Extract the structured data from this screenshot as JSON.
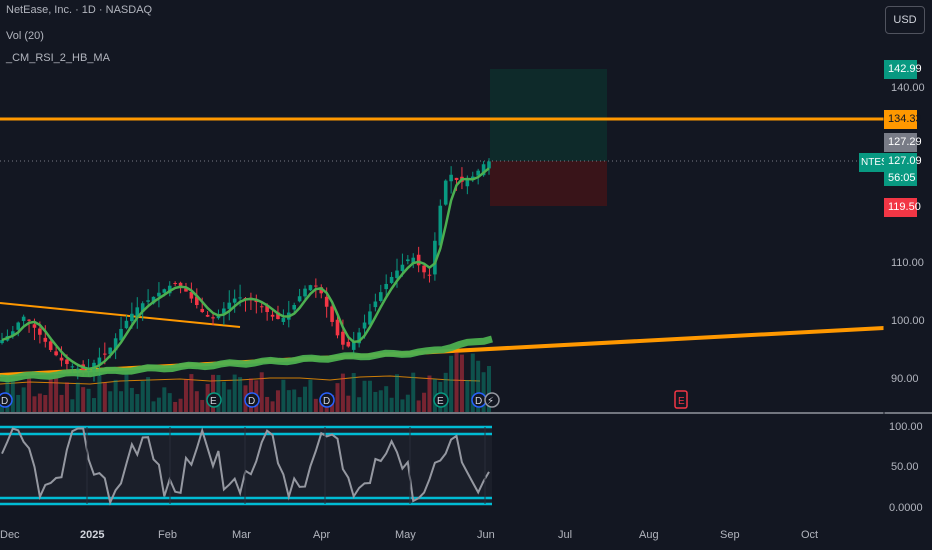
{
  "header": {
    "symbol_line": "NetEase, Inc. · 1D · NASDAQ",
    "volume_line": "Vol (20)",
    "indicator_line": "_CM_RSI_2_HB_MA"
  },
  "currency_button": "USD",
  "price_axis": {
    "ticks": [
      "140.00",
      "110.00",
      "100.00",
      "90.00"
    ],
    "ticks_values": [
      140,
      110,
      100,
      90
    ]
  },
  "price_tags": {
    "target": {
      "label": "142.99",
      "color": "#089981"
    },
    "resistance": {
      "label": "134.33",
      "color": "#ff9800"
    },
    "high": {
      "label": "127.29",
      "color": "#787b86"
    },
    "symbol": "NTES",
    "last": {
      "label": "127.09",
      "color": "#089981"
    },
    "countdown": "56:05",
    "stop": {
      "label": "119.50",
      "color": "#f23645"
    }
  },
  "oscillator_axis": {
    "ticks": [
      "100.00",
      "50.00",
      "0.0000"
    ]
  },
  "time_axis": {
    "labels": [
      "Dec",
      "2025",
      "Feb",
      "Mar",
      "Apr",
      "May",
      "Jun",
      "Jul",
      "Aug",
      "Sep",
      "Oct"
    ]
  },
  "event_markers": {
    "dividend_letter": "D",
    "earnings_letter": "E",
    "split_symbol": "⚡"
  },
  "colors": {
    "background": "#131722",
    "up": "#089981",
    "down": "#f23645",
    "ma_green": "#4caf50",
    "orange": "#ff9800",
    "osc_line": "#9598a1",
    "osc_band": "#00bcd4"
  },
  "chart_data": {
    "type": "candlestick",
    "title": "NetEase, Inc. · 1D · NASDAQ",
    "ylim": [
      86,
      147
    ],
    "price_series_close": [
      96.5,
      97.2,
      98.0,
      99.5,
      100.5,
      99.8,
      98.6,
      97.4,
      96.2,
      94.8,
      93.9,
      93.0,
      92.4,
      92.0,
      91.6,
      91.3,
      91.4,
      92.6,
      93.5,
      94.0,
      95.2,
      96.8,
      98.4,
      99.8,
      101.0,
      102.1,
      102.8,
      103.3,
      103.9,
      104.6,
      105.2,
      105.8,
      106.1,
      105.4,
      104.8,
      103.6,
      102.5,
      101.3,
      100.5,
      100.2,
      100.8,
      101.9,
      102.9,
      103.6,
      103.8,
      103.5,
      103.3,
      103.0,
      102.2,
      101.3,
      100.5,
      100.1,
      100.3,
      101.2,
      102.5,
      104.0,
      105.3,
      105.9,
      105.7,
      104.5,
      102.2,
      99.6,
      97.3,
      95.7,
      95.4,
      96.3,
      97.8,
      99.5,
      101.4,
      103.1,
      104.7,
      106.1,
      107.3,
      108.4,
      109.4,
      110.3,
      110.6,
      109.3,
      108.1,
      107.6,
      113.5,
      119.5,
      123.8,
      124.8,
      123.9,
      123.6,
      124.0,
      124.5,
      125.5,
      126.6,
      127.09
    ],
    "vertical_lines_dates": [
      "2024-12-31",
      "2025-02-03",
      "2025-03-03",
      "2025-04-01",
      "2025-05-01",
      "2025-06-02"
    ],
    "resistance_level": 134.33,
    "position": {
      "entry": 127.29,
      "target": 142.99,
      "stop": 119.5,
      "last": 127.09
    },
    "oscillator": {
      "levels": [
        100,
        90,
        10,
        0
      ],
      "range": [
        0,
        100
      ]
    }
  }
}
